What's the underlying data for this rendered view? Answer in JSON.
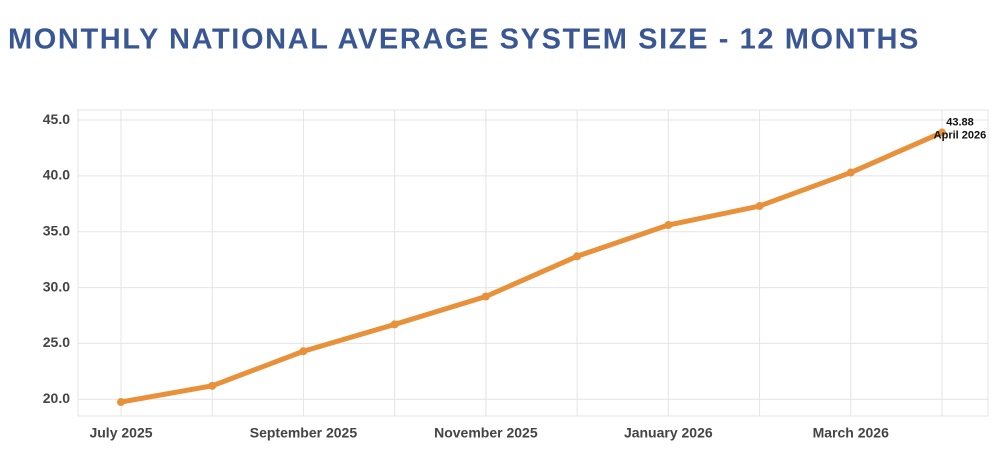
{
  "chart_data": {
    "type": "line",
    "title": "MONTHLY NATIONAL AVERAGE SYSTEM SIZE - 12 MONTHS",
    "categories": [
      "July 2025",
      null,
      "September 2025",
      null,
      "November 2025",
      null,
      "January 2026",
      null,
      "March 2026",
      null
    ],
    "values": [
      19.75,
      21.2,
      24.3,
      26.7,
      29.2,
      32.8,
      35.6,
      37.3,
      40.3,
      43.88
    ],
    "color": "#e8913a",
    "ylim": [
      18.5,
      45.9
    ],
    "yticks": [
      {
        "value": 20,
        "label": "20.0"
      },
      {
        "value": 25,
        "label": "25.0"
      },
      {
        "value": 30,
        "label": "30.0"
      },
      {
        "value": 35,
        "label": "35.0"
      },
      {
        "value": 40,
        "label": "40.0"
      },
      {
        "value": 45,
        "label": "45.0"
      }
    ],
    "annotation": "April 2026",
    "grid": true
  }
}
